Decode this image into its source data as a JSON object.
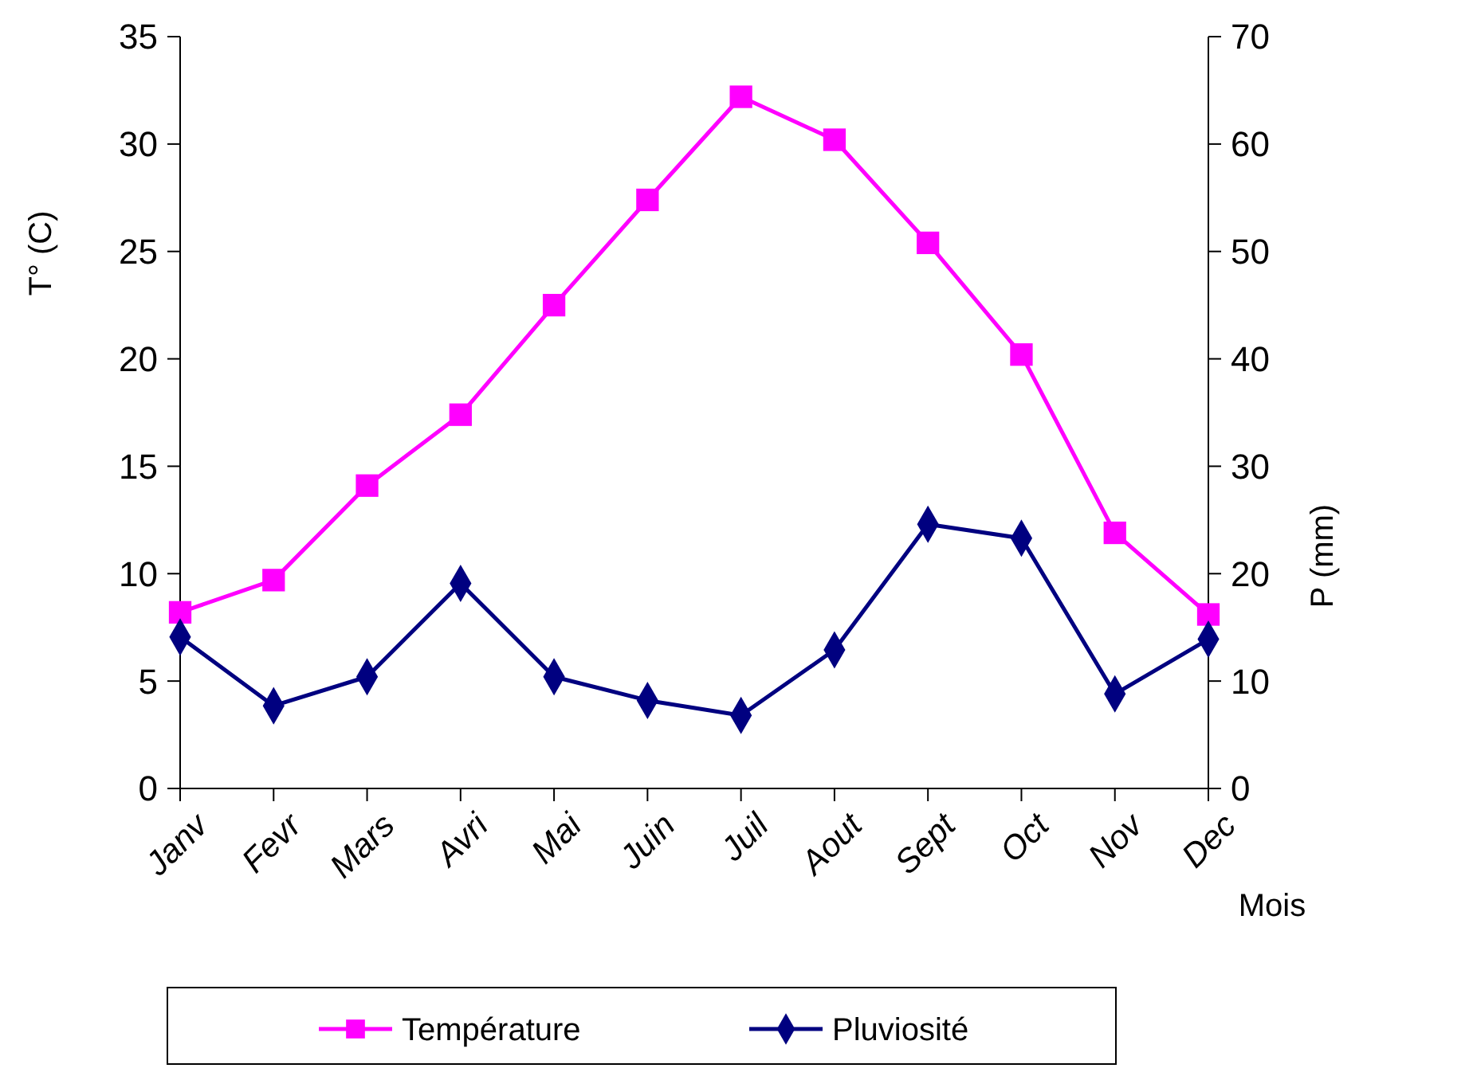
{
  "chart_data": {
    "type": "line",
    "categories": [
      "Janv",
      "Fevr",
      "Mars",
      "Avri",
      "Mai",
      "Juin",
      "Juil",
      "Aout",
      "Sept",
      "Oct",
      "Nov",
      "Dec"
    ],
    "series": [
      {
        "name": "Température",
        "color": "#ff00ff",
        "marker": "square",
        "values": [
          8.2,
          9.7,
          14.1,
          17.4,
          22.5,
          27.4,
          32.2,
          30.2,
          25.4,
          20.2,
          11.9,
          8.1
        ]
      },
      {
        "name": "Pluviosité",
        "color": "#000080",
        "marker": "diamond",
        "axis": "y2",
        "values": [
          14.1,
          7.7,
          10.4,
          19.1,
          10.4,
          8.2,
          6.8,
          12.9,
          24.6,
          23.3,
          8.8,
          13.9
        ]
      }
    ],
    "xlabel": "Mois",
    "ylabel": "T° (C)",
    "y2label": "P (mm)",
    "ylim": [
      0,
      35
    ],
    "yticks": [
      0,
      5,
      10,
      15,
      20,
      25,
      30,
      35
    ],
    "y2lim": [
      0,
      70
    ],
    "y2ticks": [
      0,
      10,
      20,
      30,
      40,
      50,
      60,
      70
    ],
    "grid": false,
    "legend": "bottom"
  }
}
